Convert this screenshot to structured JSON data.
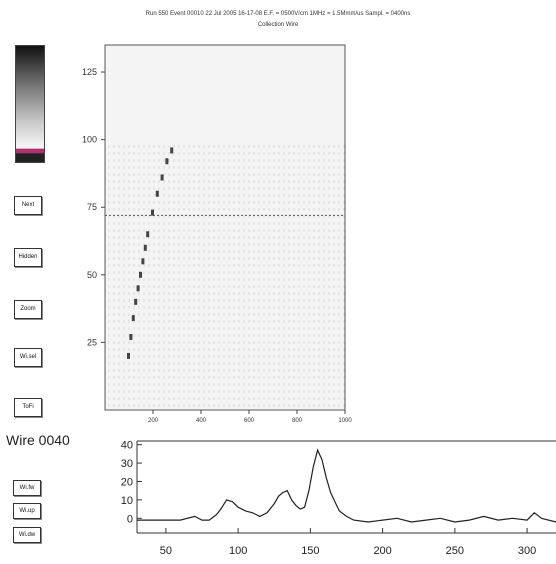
{
  "header": {
    "line1": "Run 550  Event 00010  22 Jul 2005  16-17-08  E.F. = 0500V/cm  1MHz = 1.5Mmm/us  Sampl. = 0400ns",
    "line2": "Collection Wire"
  },
  "colorbar": {
    "colors": [
      "#111111",
      "#6a6a6a",
      "#c8c8c8",
      "#f4f4f4",
      "#b03070",
      "#222222"
    ]
  },
  "buttons": {
    "next": "Next",
    "hidden": "Hidden",
    "zoom": "Zoom",
    "wire": "Wi.sel",
    "tofile": "ToFi"
  },
  "wire_buttons": {
    "fwd": "Wi.fw",
    "up": "Wi.up",
    "down": "Wi.dw"
  },
  "wire_label": "Wire 0040",
  "chart_data": [
    {
      "type": "heatmap",
      "title": "",
      "xlabel": "",
      "ylabel": "",
      "x_ticks": [
        200,
        400,
        600,
        800,
        1000
      ],
      "y_ticks": [
        25,
        50,
        75,
        100,
        125
      ],
      "xlim": [
        0,
        1000
      ],
      "ylim": [
        0,
        135
      ],
      "features": {
        "horizontal_line_y": 72,
        "track_points": [
          [
            100,
            20
          ],
          [
            110,
            27
          ],
          [
            120,
            34
          ],
          [
            130,
            40
          ],
          [
            140,
            45
          ],
          [
            150,
            50
          ],
          [
            160,
            55
          ],
          [
            170,
            60
          ],
          [
            180,
            65
          ],
          [
            200,
            73
          ],
          [
            220,
            80
          ],
          [
            240,
            86
          ],
          [
            260,
            92
          ],
          [
            280,
            96
          ]
        ]
      }
    },
    {
      "type": "line",
      "title": "",
      "xlabel": "",
      "ylabel": "",
      "x_ticks": [
        50,
        100,
        150,
        200,
        250,
        300
      ],
      "y_ticks": [
        0,
        10,
        20,
        30,
        40
      ],
      "xlim": [
        30,
        320
      ],
      "ylim": [
        -8,
        42
      ],
      "series": [
        {
          "x": [
            30,
            40,
            50,
            60,
            70,
            75,
            80,
            85,
            88,
            92,
            96,
            100,
            105,
            110,
            115,
            120,
            125,
            128,
            131,
            134,
            137,
            140,
            143,
            146,
            149,
            152,
            155,
            158,
            161,
            164,
            167,
            170,
            175,
            180,
            190,
            200,
            210,
            220,
            230,
            240,
            250,
            260,
            270,
            280,
            290,
            300,
            305,
            310,
            320
          ],
          "y": [
            -1,
            -1,
            -1,
            -1,
            1,
            -1,
            -1,
            2,
            5,
            10,
            9,
            6,
            4,
            3,
            1,
            3,
            8,
            12,
            14,
            15,
            10,
            7,
            5,
            6,
            15,
            28,
            37,
            32,
            22,
            14,
            9,
            4,
            1,
            -1,
            -2,
            -1,
            0,
            -2,
            -1,
            0,
            -2,
            -1,
            1,
            -1,
            0,
            -1,
            3,
            0,
            -2
          ]
        }
      ]
    }
  ]
}
